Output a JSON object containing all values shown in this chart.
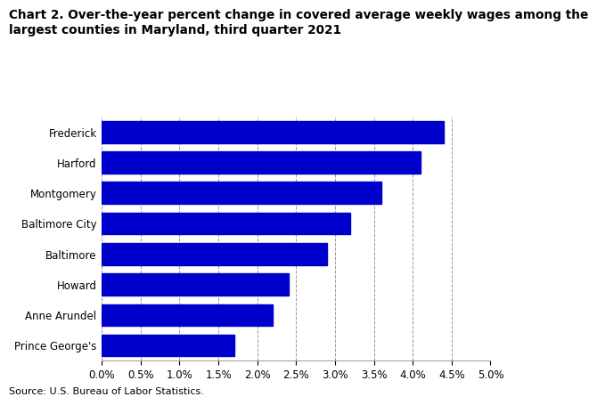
{
  "title_line1": "Chart 2. Over-the-year percent change in covered average weekly wages among the",
  "title_line2": "largest counties in Maryland, third quarter 2021",
  "categories": [
    "Prince George's",
    "Anne Arundel",
    "Howard",
    "Baltimore",
    "Baltimore City",
    "Montgomery",
    "Harford",
    "Frederick"
  ],
  "values": [
    0.017,
    0.022,
    0.024,
    0.029,
    0.032,
    0.036,
    0.041,
    0.044
  ],
  "bar_color": "#0000cc",
  "xlim": [
    0.0,
    0.05
  ],
  "xticks": [
    0.0,
    0.005,
    0.01,
    0.015,
    0.02,
    0.025,
    0.03,
    0.035,
    0.04,
    0.045,
    0.05
  ],
  "source": "Source: U.S. Bureau of Labor Statistics.",
  "title_fontsize": 9.8,
  "tick_fontsize": 8.5,
  "source_fontsize": 8.0,
  "bar_height": 0.72,
  "grid_color": "#999999",
  "background_color": "#ffffff"
}
